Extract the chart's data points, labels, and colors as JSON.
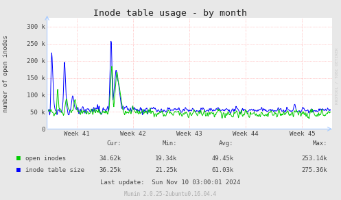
{
  "title": "Inode table usage - by month",
  "ylabel": "number of open inodes",
  "xlabel_ticks": [
    "Week 41",
    "Week 42",
    "Week 43",
    "Week 44",
    "Week 45"
  ],
  "ylim": [
    0,
    325000
  ],
  "ytick_labels": [
    "0",
    "50 k",
    "100 k",
    "150 k",
    "200 k",
    "250 k",
    "300 k"
  ],
  "bg_color": "#e8e8e8",
  "plot_bg_color": "#ffffff",
  "line_green": "#00cc00",
  "line_blue": "#0000ff",
  "legend_green_label": "open inodes",
  "legend_blue_label": "inode table size",
  "cur_green": "34.62k",
  "cur_blue": "36.25k",
  "min_green": "19.34k",
  "min_blue": "21.25k",
  "avg_green": "49.45k",
  "avg_blue": "61.03k",
  "max_green": "253.14k",
  "max_blue": "275.36k",
  "last_update": "Last update:  Sun Nov 10 03:00:01 2024",
  "munin_version": "Munin 2.0.25-2ubuntu0.16.04.4",
  "watermark": "RRDTOOL / TOBI OETIKER"
}
